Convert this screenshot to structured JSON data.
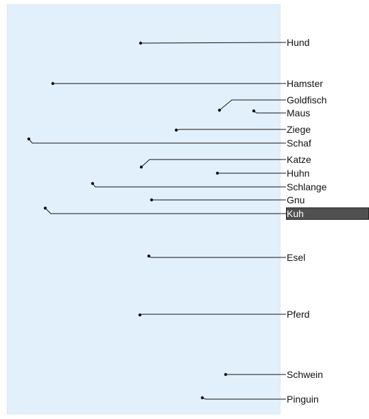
{
  "canvas": {
    "panel_color": "#e2f0fb",
    "line_color": "#111111",
    "selection_color": "#505050"
  },
  "labels": [
    {
      "text": "Hund",
      "selected": false
    },
    {
      "text": "Hamster",
      "selected": false
    },
    {
      "text": "Goldfisch",
      "selected": false
    },
    {
      "text": "Maus",
      "selected": false
    },
    {
      "text": "Ziege",
      "selected": false
    },
    {
      "text": "Schaf",
      "selected": false
    },
    {
      "text": "Katze",
      "selected": false
    },
    {
      "text": "Huhn",
      "selected": false
    },
    {
      "text": "Schlange",
      "selected": false
    },
    {
      "text": "Gnu",
      "selected": false
    },
    {
      "text": "Kuh",
      "selected": true
    },
    {
      "text": "Esel",
      "selected": false
    },
    {
      "text": "Pferd",
      "selected": false
    },
    {
      "text": "Schwein",
      "selected": false
    },
    {
      "text": "Pinguin",
      "selected": false
    }
  ]
}
